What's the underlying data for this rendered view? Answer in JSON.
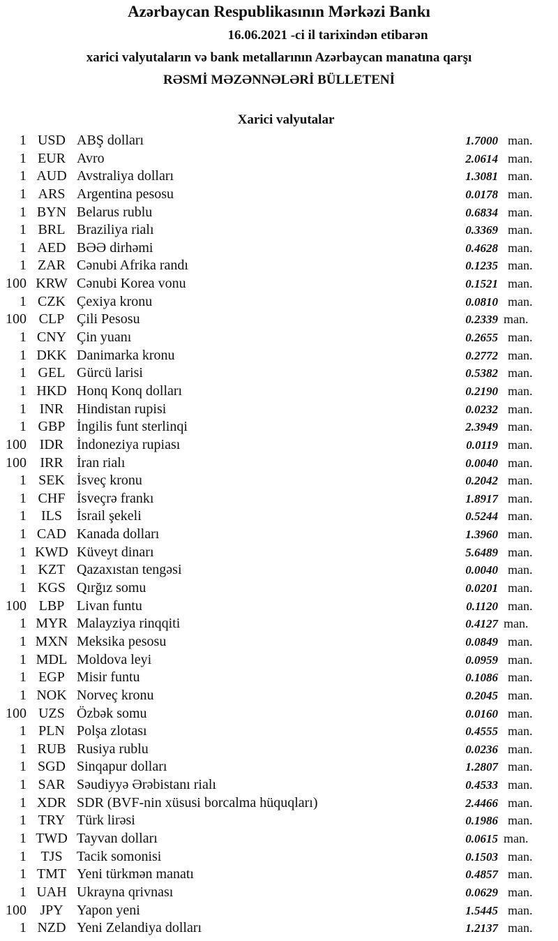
{
  "header": {
    "title": "Azərbaycan Respublikasının Mərkəzi Bankı",
    "date_line": "16.06.2021  -ci il tarixindən etibarən",
    "subtitle": "xarici valyutaların və bank metallarının Azərbaycan manatına qarşı",
    "bulletin": "RƏSMİ MƏZƏNNƏLƏRİ BÜLLETENİ"
  },
  "section_title": "Xarici valyutalar",
  "unit": "man.",
  "rates": [
    [
      "1",
      "USD",
      "ABŞ dolları",
      "1.7000"
    ],
    [
      "1",
      "EUR",
      "Avro",
      "2.0614"
    ],
    [
      "1",
      "AUD",
      "Avstraliya dolları",
      "1.3081"
    ],
    [
      "1",
      "ARS",
      "Argentina pesosu",
      "0.0178"
    ],
    [
      "1",
      "BYN",
      "Belarus rublu",
      "0.6834"
    ],
    [
      "1",
      "BRL",
      "Braziliya rialı",
      "0.3369"
    ],
    [
      "1",
      "AED",
      "BƏƏ dirhəmi",
      "0.4628"
    ],
    [
      "1",
      "ZAR",
      "Cənubi Afrika randı",
      "0.1235"
    ],
    [
      "100",
      "KRW",
      "Cənubi Korea vonu",
      "0.1521"
    ],
    [
      "1",
      "CZK",
      "Çexiya kronu",
      "0.0810"
    ],
    [
      "100",
      "CLP",
      "Çili Pesosu",
      "0.2339"
    ],
    [
      "1",
      "CNY",
      "Çin yuanı",
      "0.2655"
    ],
    [
      "1",
      "DKK",
      "Danimarka kronu",
      "0.2772"
    ],
    [
      "1",
      "GEL",
      "Gürcü larisi",
      "0.5382"
    ],
    [
      "1",
      "HKD",
      "Honq Konq dolları",
      "0.2190"
    ],
    [
      "1",
      "INR",
      "Hindistan rupisi",
      "0.0232"
    ],
    [
      "1",
      "GBP",
      "İngilis funt sterlinqi",
      "2.3949"
    ],
    [
      "100",
      "IDR",
      "İndoneziya rupiası",
      "0.0119"
    ],
    [
      "100",
      "IRR",
      "İran rialı",
      "0.0040"
    ],
    [
      "1",
      "SEK",
      "İsveç kronu",
      "0.2042"
    ],
    [
      "1",
      "CHF",
      "İsveçrə frankı",
      "1.8917"
    ],
    [
      "1",
      "ILS",
      "İsrail şekeli",
      "0.5244"
    ],
    [
      "1",
      "CAD",
      "Kanada dolları",
      "1.3960"
    ],
    [
      "1",
      "KWD",
      "Küveyt dinarı",
      "5.6489"
    ],
    [
      "1",
      "KZT",
      "Qazaxıstan tengəsi",
      "0.0040"
    ],
    [
      "1",
      "KGS",
      "Qırğız somu",
      "0.0201"
    ],
    [
      "100",
      "LBP",
      "Livan funtu",
      "0.1120"
    ],
    [
      "1",
      "MYR",
      "Malayziya rinqqiti",
      "0.4127"
    ],
    [
      "1",
      "MXN",
      "Meksika pesosu",
      "0.0849"
    ],
    [
      "1",
      "MDL",
      "Moldova leyi",
      "0.0959"
    ],
    [
      "1",
      "EGP",
      "Misir funtu",
      "0.1086"
    ],
    [
      "1",
      "NOK",
      "Norveç kronu",
      "0.2045"
    ],
    [
      "100",
      "UZS",
      "Özbək somu",
      "0.0160"
    ],
    [
      "1",
      "PLN",
      "Polşa zlotası",
      "0.4555"
    ],
    [
      "1",
      "RUB",
      "Rusiya rublu",
      "0.0236"
    ],
    [
      "1",
      "SGD",
      "Sinqapur dolları",
      "1.2807"
    ],
    [
      "1",
      "SAR",
      "Səudiyyə Ərəbistanı rialı",
      "0.4533"
    ],
    [
      "1",
      "XDR",
      "SDR (BVF-nin xüsusi borcalma hüquqları)",
      "2.4466"
    ],
    [
      "1",
      "TRY",
      "Türk lirəsi",
      "0.1986"
    ],
    [
      "1",
      "TWD",
      "Tayvan dolları",
      "0.0615"
    ],
    [
      "1",
      "TJS",
      "Tacik somonisi",
      "0.1503"
    ],
    [
      "1",
      "TMT",
      "Yeni türkmən manatı",
      "0.4857"
    ],
    [
      "1",
      "UAH",
      "Ukrayna qrivnası",
      "0.0629"
    ],
    [
      "100",
      "JPY",
      "Yapon yeni",
      "1.5445"
    ],
    [
      "1",
      "NZD",
      "Yeni Zelandiya dolları",
      "1.2137"
    ]
  ]
}
